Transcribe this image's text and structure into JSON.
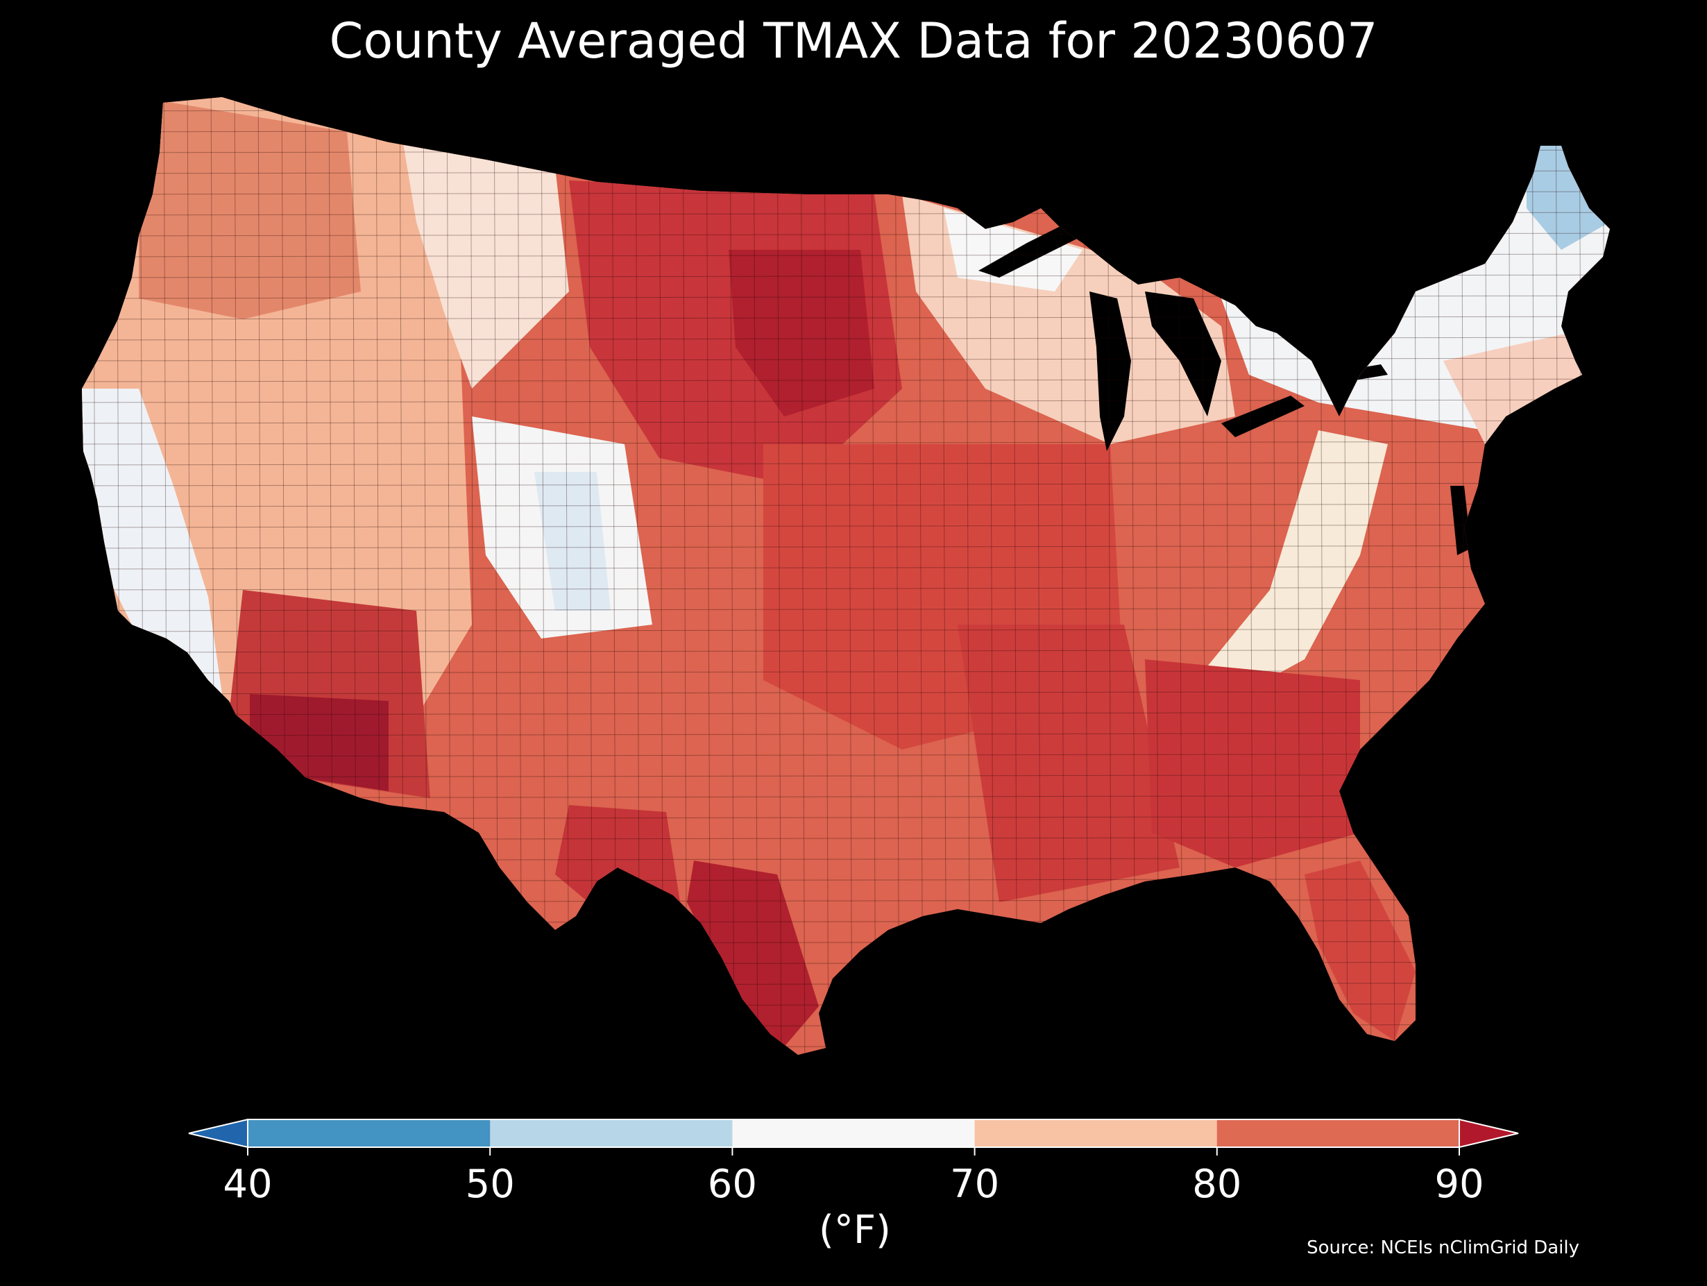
{
  "title": "County Averaged TMAX Data for 20230607",
  "colorbar": {
    "unit": "(°F)",
    "ticks": [
      "40",
      "50",
      "60",
      "70",
      "80",
      "90"
    ],
    "bins": [
      {
        "range": "below 40",
        "color": "#2166ac"
      },
      {
        "range": "40-50",
        "color": "#4393c3"
      },
      {
        "range": "50-60",
        "color": "#b7d6e8"
      },
      {
        "range": "60-70",
        "color": "#f7f7f7"
      },
      {
        "range": "70-80",
        "color": "#f8c2a4"
      },
      {
        "range": "80-90",
        "color": "#de6a54"
      },
      {
        "range": "above 90",
        "color": "#b2182b"
      }
    ]
  },
  "source": "Source: NCEIs nClimGrid Daily",
  "map": {
    "region": "Contiguous United States, county level",
    "background": "#000000",
    "state_boundary_color": "#000000"
  }
}
